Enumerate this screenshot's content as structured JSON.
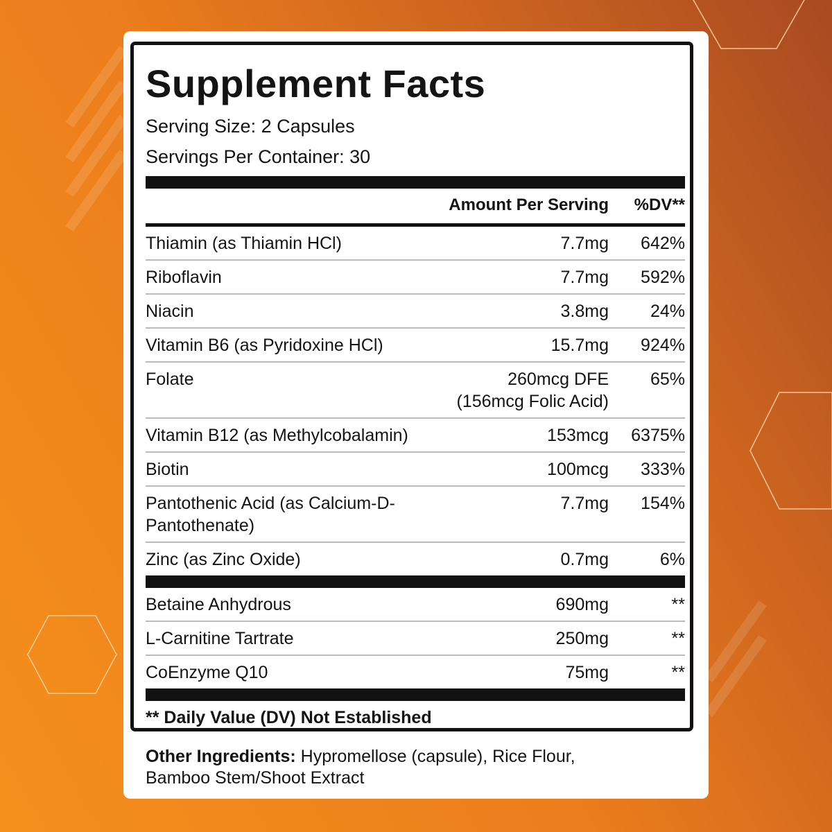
{
  "title": "Supplement Facts",
  "serving_size": "Serving Size: 2 Capsules",
  "servings_per_container": "Servings Per Container: 30",
  "header": {
    "amount": "Amount Per Serving",
    "dv": "%DV**"
  },
  "rows": [
    {
      "name": [
        "Thiamin (as Thiamin HCl)"
      ],
      "amount": [
        "7.7mg"
      ],
      "dv": "642%"
    },
    {
      "name": [
        "Riboflavin"
      ],
      "amount": [
        "7.7mg"
      ],
      "dv": "592%"
    },
    {
      "name": [
        "Niacin"
      ],
      "amount": [
        "3.8mg"
      ],
      "dv": "24%"
    },
    {
      "name": [
        "Vitamin B6 (as Pyridoxine HCl)"
      ],
      "amount": [
        "15.7mg"
      ],
      "dv": "924%"
    },
    {
      "name": [
        "Folate"
      ],
      "amount": [
        "260mcg DFE",
        "(156mcg Folic Acid)"
      ],
      "dv": "65%"
    },
    {
      "name": [
        "Vitamin B12 (as Methylcobalamin)"
      ],
      "amount": [
        "153mcg"
      ],
      "dv": "6375%"
    },
    {
      "name": [
        "Biotin"
      ],
      "amount": [
        "100mcg"
      ],
      "dv": "333%"
    },
    {
      "name": [
        "Pantothenic Acid (as Calcium-D-",
        "Pantothenate)"
      ],
      "amount": [
        "7.7mg"
      ],
      "dv": "154%"
    },
    {
      "name": [
        "Zinc (as Zinc Oxide)"
      ],
      "amount": [
        "0.7mg"
      ],
      "dv": "6%"
    }
  ],
  "other_rows": [
    {
      "name": [
        "Betaine Anhydrous"
      ],
      "amount": [
        "690mg"
      ],
      "dv": "**"
    },
    {
      "name": [
        "L-Carnitine Tartrate"
      ],
      "amount": [
        "250mg"
      ],
      "dv": "**"
    },
    {
      "name": [
        "CoEnzyme Q10"
      ],
      "amount": [
        "75mg"
      ],
      "dv": "**"
    }
  ],
  "footnote": "** Daily Value (DV) Not Established",
  "other_ingredients": {
    "label": "Other Ingredients:",
    "text": [
      "Hypromellose (capsule), Rice Flour,",
      "Bamboo Stem/Shoot Extract"
    ]
  }
}
